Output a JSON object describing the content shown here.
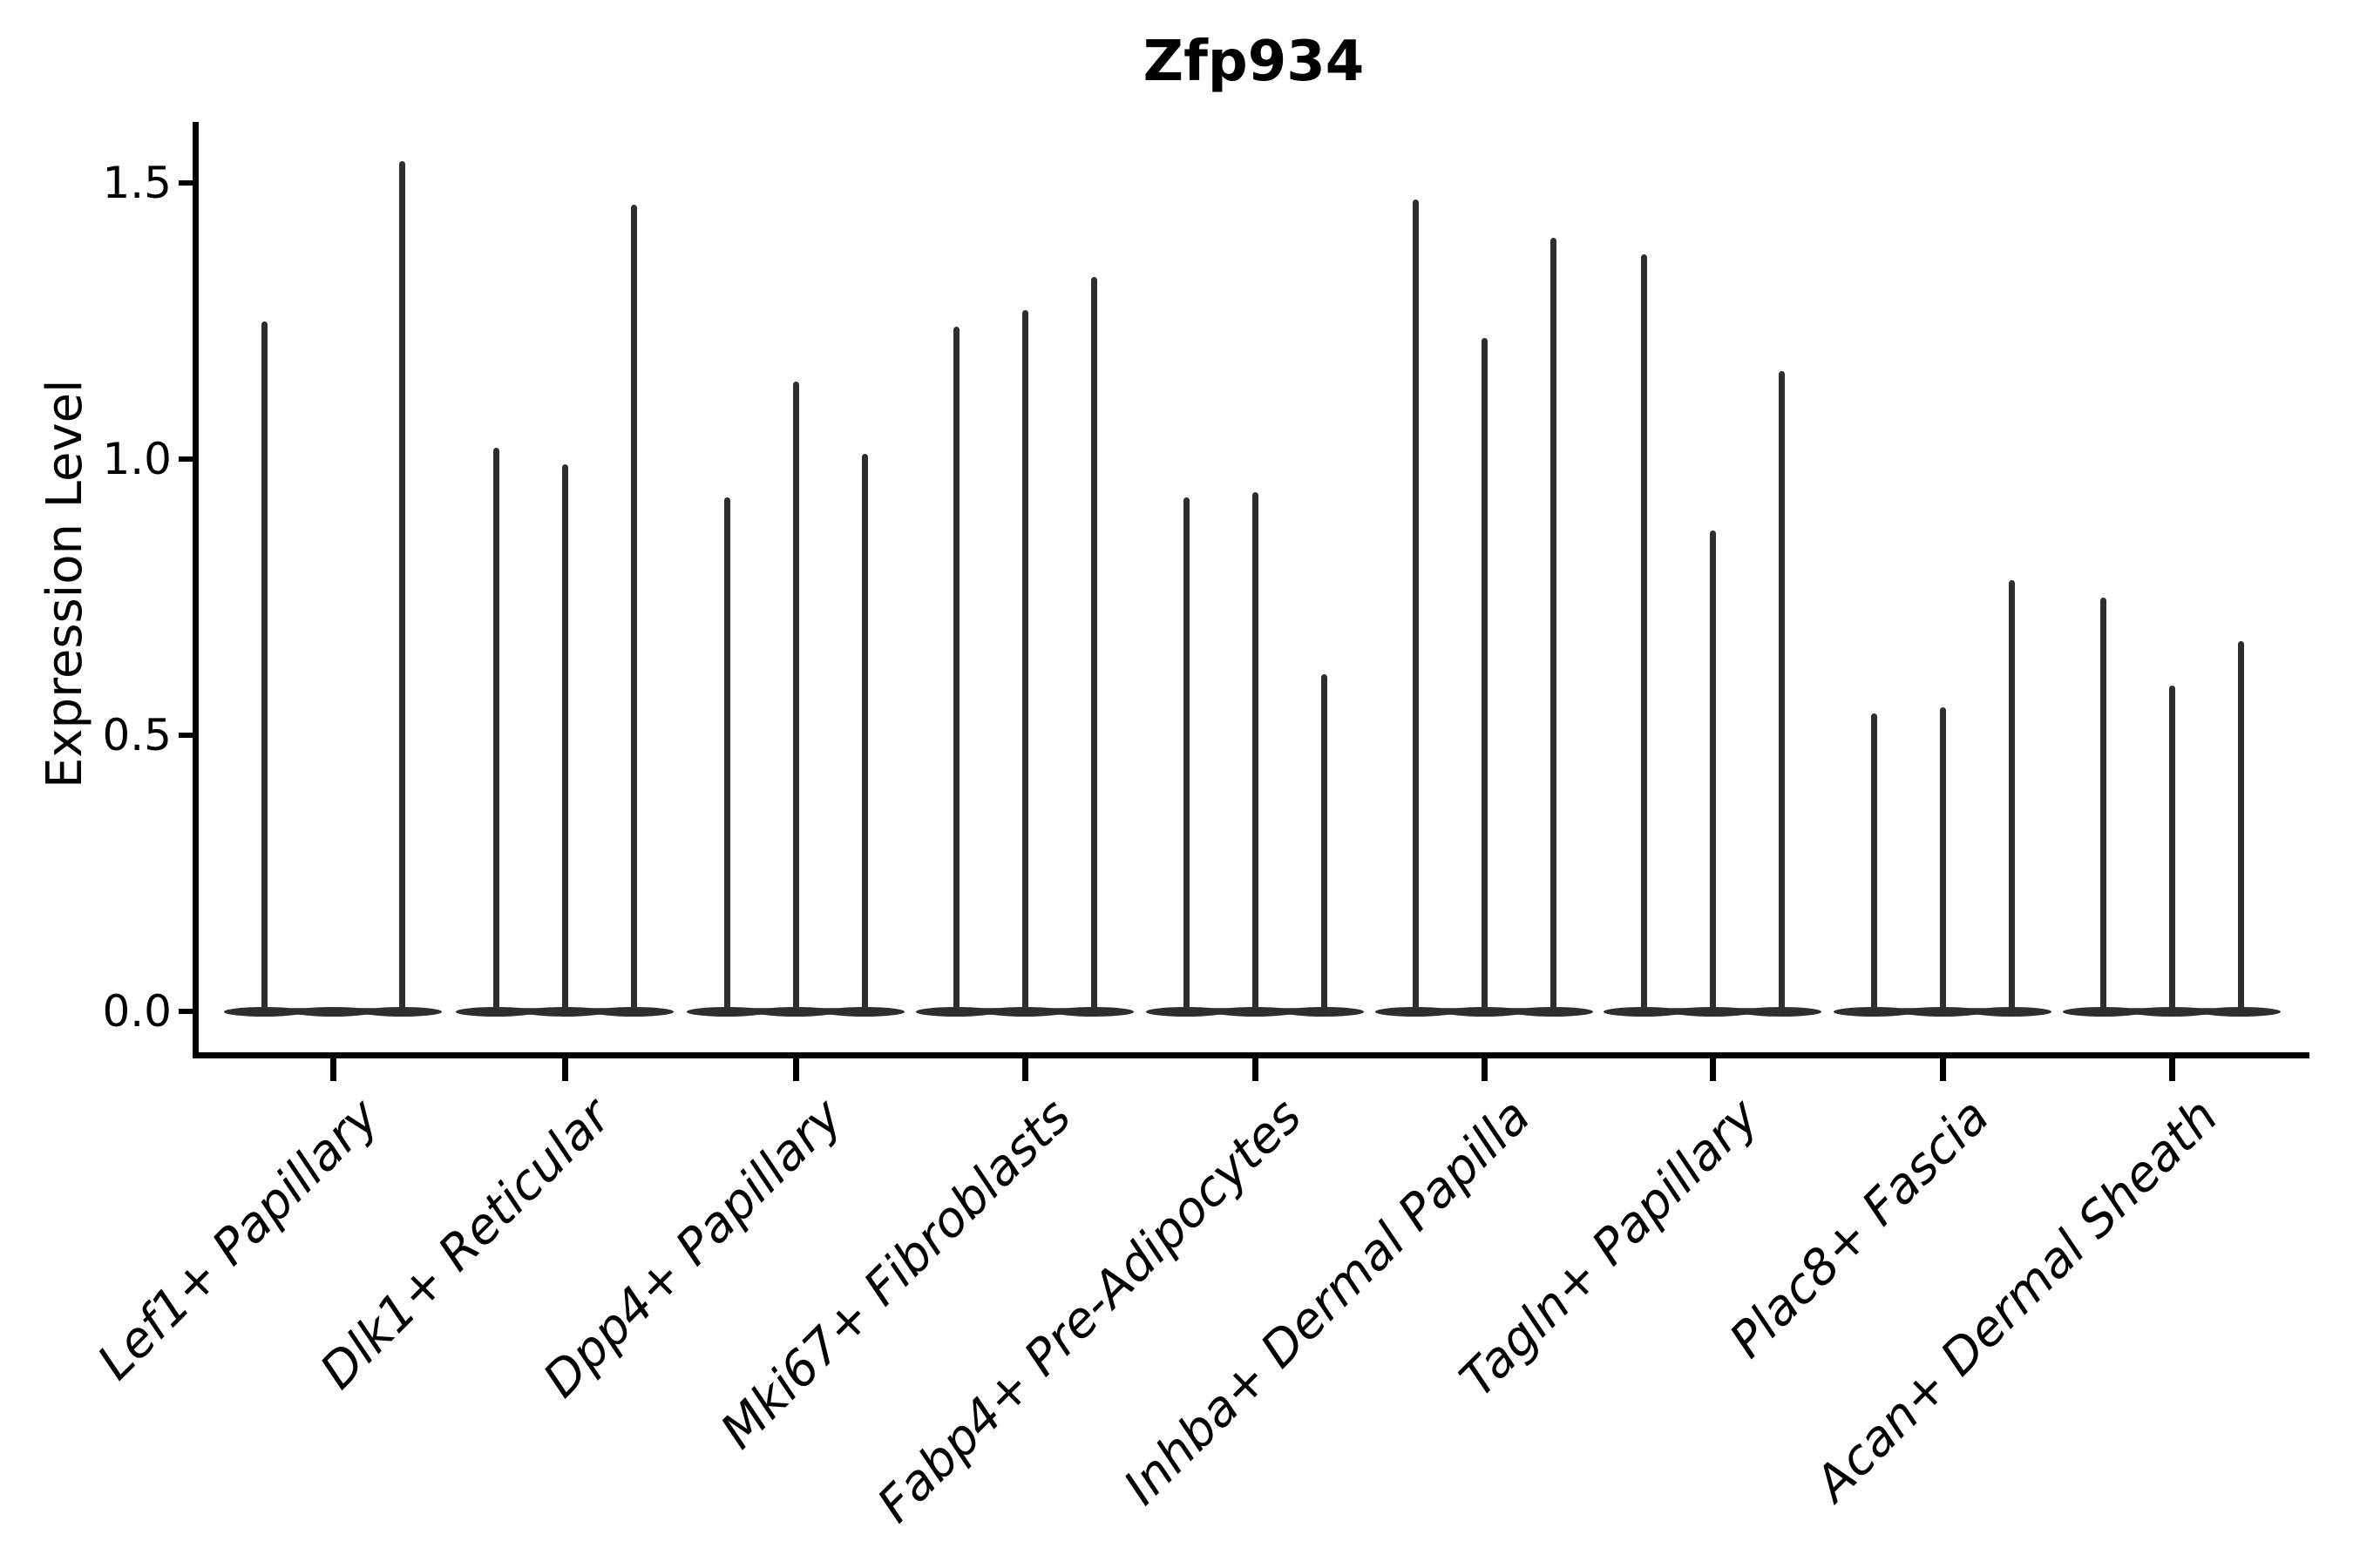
{
  "colors": {
    "background": "#ffffff",
    "violin": "#2e2e2e",
    "axis": "#000000",
    "text": "#000000"
  },
  "chart_data": {
    "type": "violin",
    "title": "Zfp934",
    "xlabel": "",
    "ylabel": "Expression Level",
    "yticks": [
      0.0,
      0.5,
      1.0,
      1.5
    ],
    "ytick_labels": [
      "0.0",
      "0.5",
      "1.0",
      "1.5"
    ],
    "ylim": [
      -0.08,
      1.62
    ],
    "grid": false,
    "legend_position": "none",
    "x_tick_label_rotation_deg": 45,
    "violins_per_category": 3,
    "categories": [
      "Lef1+ Papillary",
      "Dlk1+ Reticular",
      "Dpp4+ Papillary",
      "Mki67+ Fibroblasts",
      "Fabp4+ Pre-Adipocytes",
      "Inhba+ Dermal Papilla",
      "Tagln+ Papillary",
      "Plac8+ Fascia",
      "Acan+ Dermal Sheath"
    ],
    "series": [
      {
        "category": "Lef1+ Papillary",
        "violin_max_expression": [
          1.25,
          0.0,
          1.54
        ]
      },
      {
        "category": "Dlk1+ Reticular",
        "violin_max_expression": [
          1.02,
          0.99,
          1.46
        ]
      },
      {
        "category": "Dpp4+ Papillary",
        "violin_max_expression": [
          0.93,
          1.14,
          1.01
        ]
      },
      {
        "category": "Mki67+ Fibroblasts",
        "violin_max_expression": [
          1.24,
          1.27,
          1.33
        ]
      },
      {
        "category": "Fabp4+ Pre-Adipocytes",
        "violin_max_expression": [
          0.93,
          0.94,
          0.61
        ]
      },
      {
        "category": "Inhba+ Dermal Papilla",
        "violin_max_expression": [
          1.47,
          1.22,
          1.4
        ]
      },
      {
        "category": "Tagln+ Papillary",
        "violin_max_expression": [
          1.37,
          0.87,
          1.16
        ]
      },
      {
        "category": "Plac8+ Fascia",
        "violin_max_expression": [
          0.54,
          0.55,
          0.78
        ]
      },
      {
        "category": "Acan+ Dermal Sheath",
        "violin_max_expression": [
          0.75,
          0.59,
          0.67
        ]
      }
    ]
  }
}
